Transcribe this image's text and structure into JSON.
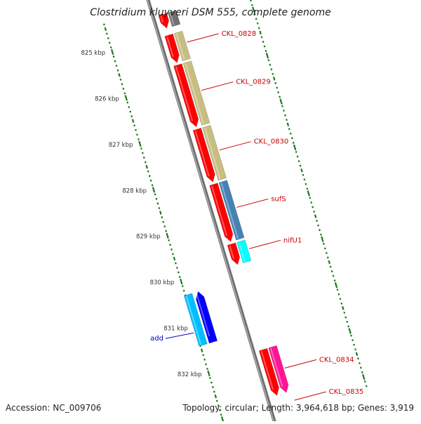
{
  "title": "Clostridium kluyveri DSM 555, complete genome",
  "footer": {
    "accession": "Accession: NC_009706",
    "topology": "Topology: circular; Length: 3,964,618 bp; Genes: 3,919"
  },
  "colors": {
    "backbone": "#8c8c8c",
    "tick": "#1a7a1a",
    "gene_label": "#cc0000",
    "add_label": "#0000cc",
    "leader": "#cc0000"
  },
  "ruler": {
    "unit": "kbp",
    "ticks": [
      {
        "kbp": 825,
        "label": "825 kbp"
      },
      {
        "kbp": 826,
        "label": "826 kbp"
      },
      {
        "kbp": 827,
        "label": "827 kbp"
      },
      {
        "kbp": 828,
        "label": "828 kbp"
      },
      {
        "kbp": 829,
        "label": "829 kbp"
      },
      {
        "kbp": 830,
        "label": "830 kbp"
      },
      {
        "kbp": 831,
        "label": "831 kbp"
      },
      {
        "kbp": 832,
        "label": "832 kbp"
      }
    ]
  },
  "features": [
    {
      "track": "cds_fwd",
      "start": 824.55,
      "end": 824.85,
      "color": "#ff0000",
      "strand": 1
    },
    {
      "track": "gene_fwd",
      "start": 824.55,
      "end": 824.85,
      "color": "#707070",
      "strand": 0
    },
    {
      "track": "cds_fwd",
      "start": 825.0,
      "end": 825.6,
      "color": "#ff0000",
      "strand": 1
    },
    {
      "track": "gene_fwd",
      "start": 825.0,
      "end": 825.6,
      "color": "#c8be82",
      "strand": 0
    },
    {
      "track": "cds_fwd",
      "start": 825.65,
      "end": 827.0,
      "color": "#ff0000",
      "strand": 1
    },
    {
      "track": "gene_fwd",
      "start": 825.65,
      "end": 827.0,
      "color": "#c8be82",
      "strand": 0
    },
    {
      "track": "cds_fwd",
      "start": 827.05,
      "end": 828.2,
      "color": "#ff0000",
      "strand": 1
    },
    {
      "track": "gene_fwd",
      "start": 827.05,
      "end": 828.2,
      "color": "#c8be82",
      "strand": 0
    },
    {
      "track": "cds_fwd",
      "start": 828.25,
      "end": 829.5,
      "color": "#ff0000",
      "strand": 1
    },
    {
      "track": "gene_fwd",
      "start": 828.25,
      "end": 829.5,
      "color": "#4682b4",
      "strand": 0
    },
    {
      "track": "cds_fwd",
      "start": 829.55,
      "end": 830.0,
      "color": "#ff0000",
      "strand": 1
    },
    {
      "track": "gene_fwd",
      "start": 829.55,
      "end": 830.0,
      "color": "#00ffff",
      "strand": 0
    },
    {
      "track": "gene_rev",
      "start": 830.3,
      "end": 831.4,
      "color": "#00bfff",
      "strand": 0
    },
    {
      "track": "cds_rev",
      "start": 830.3,
      "end": 831.4,
      "color": "#0000ff",
      "strand": -1
    },
    {
      "track": "cds_fwd",
      "start": 831.85,
      "end": 832.85,
      "color": "#ff0000",
      "strand": 1
    },
    {
      "track": "gene_fwd",
      "start": 831.85,
      "end": 832.85,
      "color": "#ff1493",
      "strand": 1
    }
  ],
  "labels": [
    {
      "text": "CKL_0828",
      "kbp": 825.25,
      "side": "right",
      "color": "#cc0000"
    },
    {
      "text": "CKL_0829",
      "kbp": 826.3,
      "side": "right",
      "color": "#cc0000"
    },
    {
      "text": "CKL_0830",
      "kbp": 827.6,
      "side": "right",
      "color": "#cc0000"
    },
    {
      "text": "sufS",
      "kbp": 828.85,
      "side": "right",
      "color": "#cc0000"
    },
    {
      "text": "nifU1",
      "kbp": 829.75,
      "side": "right",
      "color": "#cc0000"
    },
    {
      "text": "add",
      "kbp": 831.1,
      "side": "left",
      "color": "#0000cc"
    },
    {
      "text": "CKL_0834",
      "kbp": 832.35,
      "side": "right",
      "color": "#cc0000"
    },
    {
      "text": "CKL_0835",
      "kbp": 833.05,
      "side": "right",
      "color": "#cc0000"
    }
  ]
}
